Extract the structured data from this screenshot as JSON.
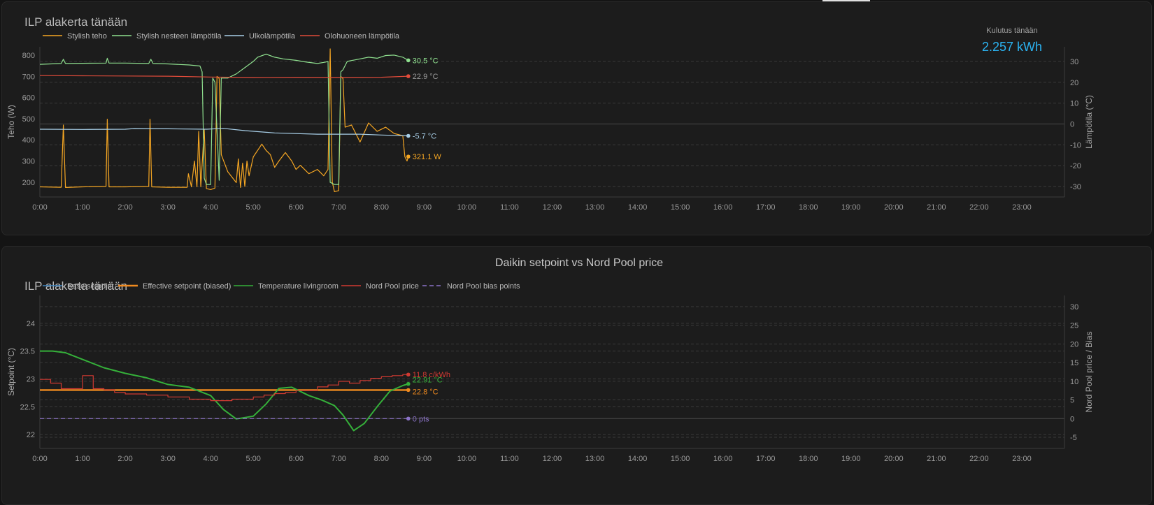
{
  "colors": {
    "background": "#1c1c1c",
    "text": "#cfcfcf",
    "muted": "#9a9a9a",
    "grid": "#3a3a3a",
    "orange": "#f5a623",
    "green": "#8fe08f",
    "lightblue": "#a8cfe8",
    "red": "#e04b3a",
    "cyan": "#2bb2f0",
    "darkgreen": "#35b03a",
    "darkred": "#d23a32",
    "purple": "#8c73c9",
    "blue": "#3f88c5",
    "setpoint_orange": "#f08a1f"
  },
  "chart_data": [
    {
      "type": "line",
      "title": "ILP alakerta tänään",
      "ylabel": "Teho (W)",
      "y2label": "Lämpötila (°C)",
      "x_ticks": [
        "0:00",
        "1:00",
        "2:00",
        "3:00",
        "4:00",
        "5:00",
        "6:00",
        "7:00",
        "8:00",
        "9:00",
        "10:00",
        "11:00",
        "12:00",
        "13:00",
        "14:00",
        "15:00",
        "16:00",
        "17:00",
        "18:00",
        "19:00",
        "20:00",
        "21:00",
        "22:00",
        "23:00"
      ],
      "xlim": [
        0,
        24
      ],
      "ylim": [
        130,
        840
      ],
      "y2lim": [
        -35,
        37
      ],
      "y_ticks": [
        200,
        300,
        400,
        500,
        600,
        700,
        800
      ],
      "y2_ticks": [
        -30,
        -20,
        -10,
        0,
        10,
        20,
        30
      ],
      "stat": {
        "label": "Kulutus tänään",
        "value": "2.257 kWh"
      },
      "series": [
        {
          "name": "Stylish teho",
          "axis": "left",
          "color": "#f5a623",
          "end_label": "321.1 W",
          "points": [
            [
              0,
              178
            ],
            [
              0.5,
              176
            ],
            [
              0.55,
              470
            ],
            [
              0.6,
              175
            ],
            [
              1,
              178
            ],
            [
              1.55,
              180
            ],
            [
              1.58,
              498
            ],
            [
              1.62,
              178
            ],
            [
              2,
              178
            ],
            [
              2.55,
              180
            ],
            [
              2.58,
              498
            ],
            [
              2.62,
              178
            ],
            [
              3,
              176
            ],
            [
              3.45,
              176
            ],
            [
              3.48,
              240
            ],
            [
              3.55,
              178
            ],
            [
              3.62,
              300
            ],
            [
              3.68,
              178
            ],
            [
              3.72,
              440
            ],
            [
              3.77,
              178
            ],
            [
              3.85,
              450
            ],
            [
              3.9,
              170
            ],
            [
              4,
              165
            ],
            [
              4.1,
              172
            ],
            [
              4.15,
              700
            ],
            [
              4.2,
              690
            ],
            [
              4.25,
              330
            ],
            [
              4.4,
              250
            ],
            [
              4.6,
              198
            ],
            [
              4.65,
              310
            ],
            [
              4.7,
              175
            ],
            [
              4.75,
              290
            ],
            [
              4.8,
              180
            ],
            [
              4.85,
              300
            ],
            [
              4.9,
              230
            ],
            [
              5,
              320
            ],
            [
              5.2,
              380
            ],
            [
              5.3,
              350
            ],
            [
              5.4,
              330
            ],
            [
              5.5,
              270
            ],
            [
              5.6,
              300
            ],
            [
              5.75,
              340
            ],
            [
              5.9,
              300
            ],
            [
              6.0,
              260
            ],
            [
              6.1,
              280
            ],
            [
              6.3,
              240
            ],
            [
              6.5,
              260
            ],
            [
              6.65,
              230
            ],
            [
              6.75,
              260
            ],
            [
              6.8,
              830
            ],
            [
              6.85,
              200
            ],
            [
              6.9,
              155
            ],
            [
              7.0,
              160
            ],
            [
              7.05,
              700
            ],
            [
              7.1,
              690
            ],
            [
              7.15,
              460
            ],
            [
              7.3,
              470
            ],
            [
              7.5,
              390
            ],
            [
              7.7,
              480
            ],
            [
              7.9,
              440
            ],
            [
              8.1,
              460
            ],
            [
              8.3,
              430
            ],
            [
              8.5,
              420
            ],
            [
              8.55,
              320
            ],
            [
              8.6,
              300
            ],
            [
              8.63,
              321
            ]
          ]
        },
        {
          "name": "Stylish nesteen lämpötila",
          "axis": "right",
          "color": "#8fe08f",
          "end_label": "30.5 °C",
          "points": [
            [
              0,
              28.6
            ],
            [
              0.5,
              29
            ],
            [
              0.55,
              31
            ],
            [
              0.6,
              29
            ],
            [
              1,
              29.1
            ],
            [
              1.55,
              29.2
            ],
            [
              1.58,
              31.5
            ],
            [
              1.62,
              29.2
            ],
            [
              2,
              29.2
            ],
            [
              2.55,
              29
            ],
            [
              2.6,
              31
            ],
            [
              2.65,
              29
            ],
            [
              3,
              28.8
            ],
            [
              3.5,
              28.3
            ],
            [
              3.75,
              27.8
            ],
            [
              3.8,
              25
            ],
            [
              3.85,
              -26
            ],
            [
              3.9,
              -29
            ],
            [
              4,
              -29
            ],
            [
              4.05,
              22
            ],
            [
              4.1,
              20
            ],
            [
              4.2,
              -27
            ],
            [
              4.25,
              22
            ],
            [
              4.4,
              22
            ],
            [
              4.6,
              24
            ],
            [
              4.8,
              27
            ],
            [
              5.0,
              30
            ],
            [
              5.1,
              32
            ],
            [
              5.3,
              33.5
            ],
            [
              5.5,
              32
            ],
            [
              5.7,
              31.2
            ],
            [
              6.0,
              30.5
            ],
            [
              6.2,
              29.8
            ],
            [
              6.5,
              29
            ],
            [
              6.7,
              29.7
            ],
            [
              6.75,
              30
            ],
            [
              6.8,
              -28
            ],
            [
              6.9,
              -29
            ],
            [
              7.0,
              -29
            ],
            [
              7.05,
              25
            ],
            [
              7.1,
              26
            ],
            [
              7.2,
              30
            ],
            [
              7.5,
              31.2
            ],
            [
              7.7,
              32
            ],
            [
              7.9,
              31.5
            ],
            [
              8.1,
              32.8
            ],
            [
              8.3,
              33
            ],
            [
              8.5,
              32
            ],
            [
              8.63,
              30.5
            ]
          ]
        },
        {
          "name": "Ulkolämpötila",
          "axis": "right",
          "color": "#a8cfe8",
          "end_label": "-5.7 °C",
          "points": [
            [
              0,
              -2.5
            ],
            [
              1,
              -2.6
            ],
            [
              2,
              -2.5
            ],
            [
              2.2,
              -2.2
            ],
            [
              3,
              -2.3
            ],
            [
              3.9,
              -2.5
            ],
            [
              4.3,
              -2.1
            ],
            [
              4.8,
              -3.2
            ],
            [
              5.5,
              -4.3
            ],
            [
              6.5,
              -4.9
            ],
            [
              7.5,
              -4.9
            ],
            [
              8,
              -5.3
            ],
            [
              8.63,
              -5.7
            ]
          ]
        },
        {
          "name": "Olohuoneen lämpötila",
          "axis": "right",
          "color": "#e04b3a",
          "end_label": "22.9 °C",
          "points": [
            [
              0,
              23.2
            ],
            [
              1,
              23.1
            ],
            [
              2,
              23
            ],
            [
              3,
              22.9
            ],
            [
              4,
              22.5
            ],
            [
              5,
              22.3
            ],
            [
              6,
              22.4
            ],
            [
              7,
              22.3
            ],
            [
              8,
              22.4
            ],
            [
              8.63,
              22.9
            ]
          ]
        }
      ]
    },
    {
      "type": "line",
      "header": "Daikin setpoint vs Nord Pool price",
      "title": "ILP alakerta tänään",
      "ylabel": "Setpoint (°C)",
      "y2label": "Nord Pool price / Bias",
      "x_ticks": [
        "0:00",
        "1:00",
        "2:00",
        "3:00",
        "4:00",
        "5:00",
        "6:00",
        "7:00",
        "8:00",
        "9:00",
        "10:00",
        "11:00",
        "12:00",
        "13:00",
        "14:00",
        "15:00",
        "16:00",
        "17:00",
        "18:00",
        "19:00",
        "20:00",
        "21:00",
        "22:00",
        "23:00"
      ],
      "xlim": [
        0,
        24
      ],
      "ylim": [
        21.75,
        24.5
      ],
      "y2lim": [
        -8,
        33
      ],
      "y_ticks": [
        22,
        22.5,
        23,
        23.5,
        24
      ],
      "y2_ticks": [
        -5,
        0,
        5,
        10,
        15,
        20,
        25,
        30
      ],
      "series": [
        {
          "name": "Base setpoint",
          "axis": "left",
          "color": "#3f88c5",
          "dash": "",
          "end_label": "",
          "points": [
            [
              0,
              22.8
            ],
            [
              8.63,
              22.8
            ]
          ]
        },
        {
          "name": "Effective setpoint (biased)",
          "axis": "left",
          "color": "#f08a1f",
          "dash": "",
          "end_label": "22.8 °C",
          "points": [
            [
              0,
              22.8
            ],
            [
              8.63,
              22.8
            ]
          ]
        },
        {
          "name": "Temperature livingroom",
          "axis": "left",
          "color": "#35b03a",
          "dash": "",
          "end_label": "22.91 °C",
          "points": [
            [
              0,
              23.5
            ],
            [
              0.3,
              23.5
            ],
            [
              0.6,
              23.47
            ],
            [
              1,
              23.35
            ],
            [
              1.5,
              23.2
            ],
            [
              2,
              23.1
            ],
            [
              2.5,
              23.02
            ],
            [
              3,
              22.9
            ],
            [
              3.5,
              22.85
            ],
            [
              4,
              22.7
            ],
            [
              4.3,
              22.45
            ],
            [
              4.6,
              22.28
            ],
            [
              5,
              22.33
            ],
            [
              5.3,
              22.55
            ],
            [
              5.6,
              22.83
            ],
            [
              5.9,
              22.85
            ],
            [
              6.3,
              22.7
            ],
            [
              6.6,
              22.62
            ],
            [
              6.9,
              22.52
            ],
            [
              7.1,
              22.35
            ],
            [
              7.35,
              22.07
            ],
            [
              7.6,
              22.2
            ],
            [
              7.9,
              22.5
            ],
            [
              8.2,
              22.78
            ],
            [
              8.5,
              22.88
            ],
            [
              8.63,
              22.91
            ]
          ]
        },
        {
          "name": "Nord Pool price",
          "axis": "right",
          "color": "#d23a32",
          "dash": "",
          "end_label": "11.8 c/kWh",
          "points": [
            [
              0,
              10.5
            ],
            [
              0.25,
              10.5
            ],
            [
              0.25,
              9.5
            ],
            [
              0.5,
              9.5
            ],
            [
              0.5,
              8
            ],
            [
              1,
              8
            ],
            [
              1,
              11.5
            ],
            [
              1.25,
              11.5
            ],
            [
              1.25,
              8
            ],
            [
              1.5,
              8
            ],
            [
              1.5,
              7.7
            ],
            [
              1.75,
              7.7
            ],
            [
              1.75,
              7
            ],
            [
              2,
              7
            ],
            [
              2,
              6.6
            ],
            [
              2.5,
              6.6
            ],
            [
              2.5,
              6.3
            ],
            [
              3,
              6.3
            ],
            [
              3,
              5.8
            ],
            [
              3.5,
              5.8
            ],
            [
              3.5,
              5.2
            ],
            [
              4,
              5.2
            ],
            [
              4,
              4.8
            ],
            [
              4.5,
              4.8
            ],
            [
              4.5,
              5.2
            ],
            [
              5,
              5.2
            ],
            [
              5,
              5.8
            ],
            [
              5.25,
              5.8
            ],
            [
              5.25,
              6.3
            ],
            [
              5.5,
              6.3
            ],
            [
              5.5,
              6.7
            ],
            [
              5.75,
              6.7
            ],
            [
              5.75,
              7
            ],
            [
              6,
              7
            ],
            [
              6,
              7.5
            ],
            [
              6.5,
              7.5
            ],
            [
              6.5,
              8.5
            ],
            [
              6.75,
              8.5
            ],
            [
              6.75,
              9
            ],
            [
              7,
              9
            ],
            [
              7,
              10
            ],
            [
              7.25,
              10
            ],
            [
              7.25,
              9.5
            ],
            [
              7.5,
              9.5
            ],
            [
              7.5,
              10.2
            ],
            [
              7.75,
              10.2
            ],
            [
              7.75,
              10.8
            ],
            [
              8,
              10.8
            ],
            [
              8,
              11.2
            ],
            [
              8.25,
              11.2
            ],
            [
              8.25,
              11.5
            ],
            [
              8.5,
              11.5
            ],
            [
              8.5,
              11.8
            ],
            [
              8.63,
              11.8
            ]
          ]
        },
        {
          "name": "Nord Pool bias points",
          "axis": "right",
          "color": "#8c73c9",
          "dash": "6 4",
          "end_label": "0 pts",
          "points": [
            [
              0,
              0
            ],
            [
              8.63,
              0
            ]
          ]
        }
      ]
    }
  ]
}
